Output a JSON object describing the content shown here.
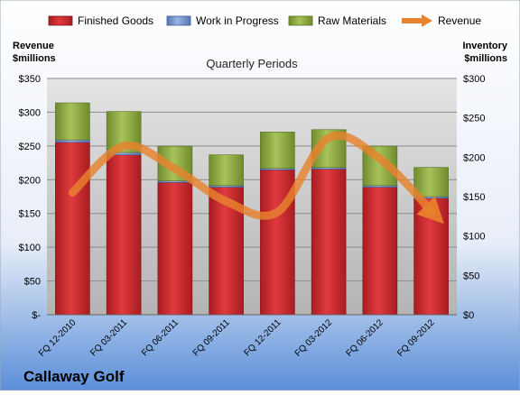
{
  "chart_data": {
    "type": "bar",
    "stacked": true,
    "title": "Quarterly Periods",
    "company": "Callaway Golf",
    "left_axis": {
      "label_line1": "Revenue",
      "label_line2": "$millions",
      "range": [
        0,
        350
      ],
      "ticks": [
        0,
        50,
        100,
        150,
        200,
        250,
        300,
        350
      ],
      "tick_labels": [
        "$-",
        "$50",
        "$100",
        "$150",
        "$200",
        "$250",
        "$300",
        "$350"
      ]
    },
    "right_axis": {
      "label_line1": "Inventory",
      "label_line2": "$millions",
      "range": [
        0,
        300
      ],
      "ticks": [
        0,
        50,
        100,
        150,
        200,
        250,
        300
      ],
      "tick_labels": [
        "$0",
        "$50",
        "$100",
        "$150",
        "$200",
        "$250",
        "$300"
      ]
    },
    "categories": [
      "FQ 12-2010",
      "FQ 03-2011",
      "FQ 06-2011",
      "FQ 09-2011",
      "FQ 12-2011",
      "FQ 03-2012",
      "FQ 06-2012",
      "FQ 09-2012"
    ],
    "series": [
      {
        "name": "Finished Goods",
        "axis": "right",
        "color": "#c8282c",
        "values": [
          219,
          203,
          168,
          162,
          184,
          185,
          162,
          148
        ]
      },
      {
        "name": "Work in Progress",
        "axis": "right",
        "color": "#6f8fc9",
        "values": [
          3,
          3,
          2,
          2,
          2,
          2,
          2,
          2
        ]
      },
      {
        "name": "Raw Materials",
        "axis": "right",
        "color": "#8aa53f",
        "values": [
          47,
          52,
          44,
          39,
          46,
          48,
          50,
          37
        ]
      },
      {
        "name": "Revenue",
        "axis": "left",
        "type": "line",
        "color": "#e8832e",
        "values": [
          181,
          250,
          216,
          168,
          152,
          262,
          231,
          154
        ]
      }
    ],
    "grid": true,
    "legend_position": "top"
  }
}
